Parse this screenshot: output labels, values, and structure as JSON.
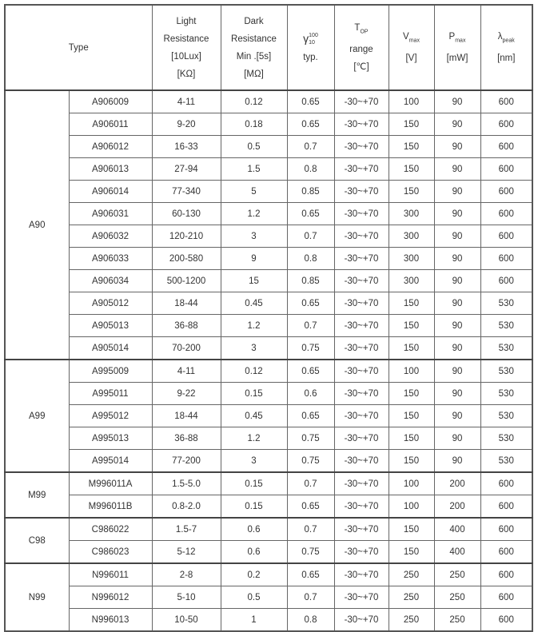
{
  "header": {
    "type": "Type",
    "light_resistance": [
      "Light",
      "Resistance",
      "[10Lux]",
      "[KΩ]"
    ],
    "dark_resistance": [
      "Dark",
      "Resistance",
      "Min .[5s]",
      "[MΩ]"
    ],
    "gamma": {
      "symbol": "γ",
      "sup": "100",
      "sub": "10",
      "note": "typ."
    },
    "top": {
      "symbol": "T",
      "sub": "OP",
      "line2": "range",
      "line3": "[℃]"
    },
    "vmax": {
      "symbol": "V",
      "sub": "max",
      "unit": "[V]"
    },
    "pmax": {
      "symbol": "P",
      "sub": "max",
      "unit": "[mW]"
    },
    "lpeak": {
      "symbol": "λ",
      "sub": "peak",
      "unit": "[nm]"
    }
  },
  "groups": [
    {
      "name": "A90",
      "rows": [
        [
          "A906009",
          "4-11",
          "0.12",
          "0.65",
          "-30~+70",
          "100",
          "90",
          "600"
        ],
        [
          "A906011",
          "9-20",
          "0.18",
          "0.65",
          "-30~+70",
          "150",
          "90",
          "600"
        ],
        [
          "A906012",
          "16-33",
          "0.5",
          "0.7",
          "-30~+70",
          "150",
          "90",
          "600"
        ],
        [
          "A906013",
          "27-94",
          "1.5",
          "0.8",
          "-30~+70",
          "150",
          "90",
          "600"
        ],
        [
          "A906014",
          "77-340",
          "5",
          "0.85",
          "-30~+70",
          "150",
          "90",
          "600"
        ],
        [
          "A906031",
          "60-130",
          "1.2",
          "0.65",
          "-30~+70",
          "300",
          "90",
          "600"
        ],
        [
          "A906032",
          "120-210",
          "3",
          "0.7",
          "-30~+70",
          "300",
          "90",
          "600"
        ],
        [
          "A906033",
          "200-580",
          "9",
          "0.8",
          "-30~+70",
          "300",
          "90",
          "600"
        ],
        [
          "A906034",
          "500-1200",
          "15",
          "0.85",
          "-30~+70",
          "300",
          "90",
          "600"
        ],
        [
          "A905012",
          "18-44",
          "0.45",
          "0.65",
          "-30~+70",
          "150",
          "90",
          "530"
        ],
        [
          "A905013",
          "36-88",
          "1.2",
          "0.7",
          "-30~+70",
          "150",
          "90",
          "530"
        ],
        [
          "A905014",
          "70-200",
          "3",
          "0.75",
          "-30~+70",
          "150",
          "90",
          "530"
        ]
      ]
    },
    {
      "name": "A99",
      "rows": [
        [
          "A995009",
          "4-11",
          "0.12",
          "0.65",
          "-30~+70",
          "100",
          "90",
          "530"
        ],
        [
          "A995011",
          "9-22",
          "0.15",
          "0.6",
          "-30~+70",
          "150",
          "90",
          "530"
        ],
        [
          "A995012",
          "18-44",
          "0.45",
          "0.65",
          "-30~+70",
          "150",
          "90",
          "530"
        ],
        [
          "A995013",
          "36-88",
          "1.2",
          "0.75",
          "-30~+70",
          "150",
          "90",
          "530"
        ],
        [
          "A995014",
          "77-200",
          "3",
          "0.75",
          "-30~+70",
          "150",
          "90",
          "530"
        ]
      ]
    },
    {
      "name": "M99",
      "rows": [
        [
          "M996011A",
          "1.5-5.0",
          "0.15",
          "0.7",
          "-30~+70",
          "100",
          "200",
          "600"
        ],
        [
          "M996011B",
          "0.8-2.0",
          "0.15",
          "0.65",
          "-30~+70",
          "100",
          "200",
          "600"
        ]
      ]
    },
    {
      "name": "C98",
      "rows": [
        [
          "C986022",
          "1.5-7",
          "0.6",
          "0.7",
          "-30~+70",
          "150",
          "400",
          "600"
        ],
        [
          "C986023",
          "5-12",
          "0.6",
          "0.75",
          "-30~+70",
          "150",
          "400",
          "600"
        ]
      ]
    },
    {
      "name": "N99",
      "rows": [
        [
          "N996011",
          "2-8",
          "0.2",
          "0.65",
          "-30~+70",
          "250",
          "250",
          "600"
        ],
        [
          "N996012",
          "5-10",
          "0.5",
          "0.7",
          "-30~+70",
          "250",
          "250",
          "600"
        ],
        [
          "N996013",
          "10-50",
          "1",
          "0.8",
          "-30~+70",
          "250",
          "250",
          "600"
        ]
      ]
    }
  ]
}
